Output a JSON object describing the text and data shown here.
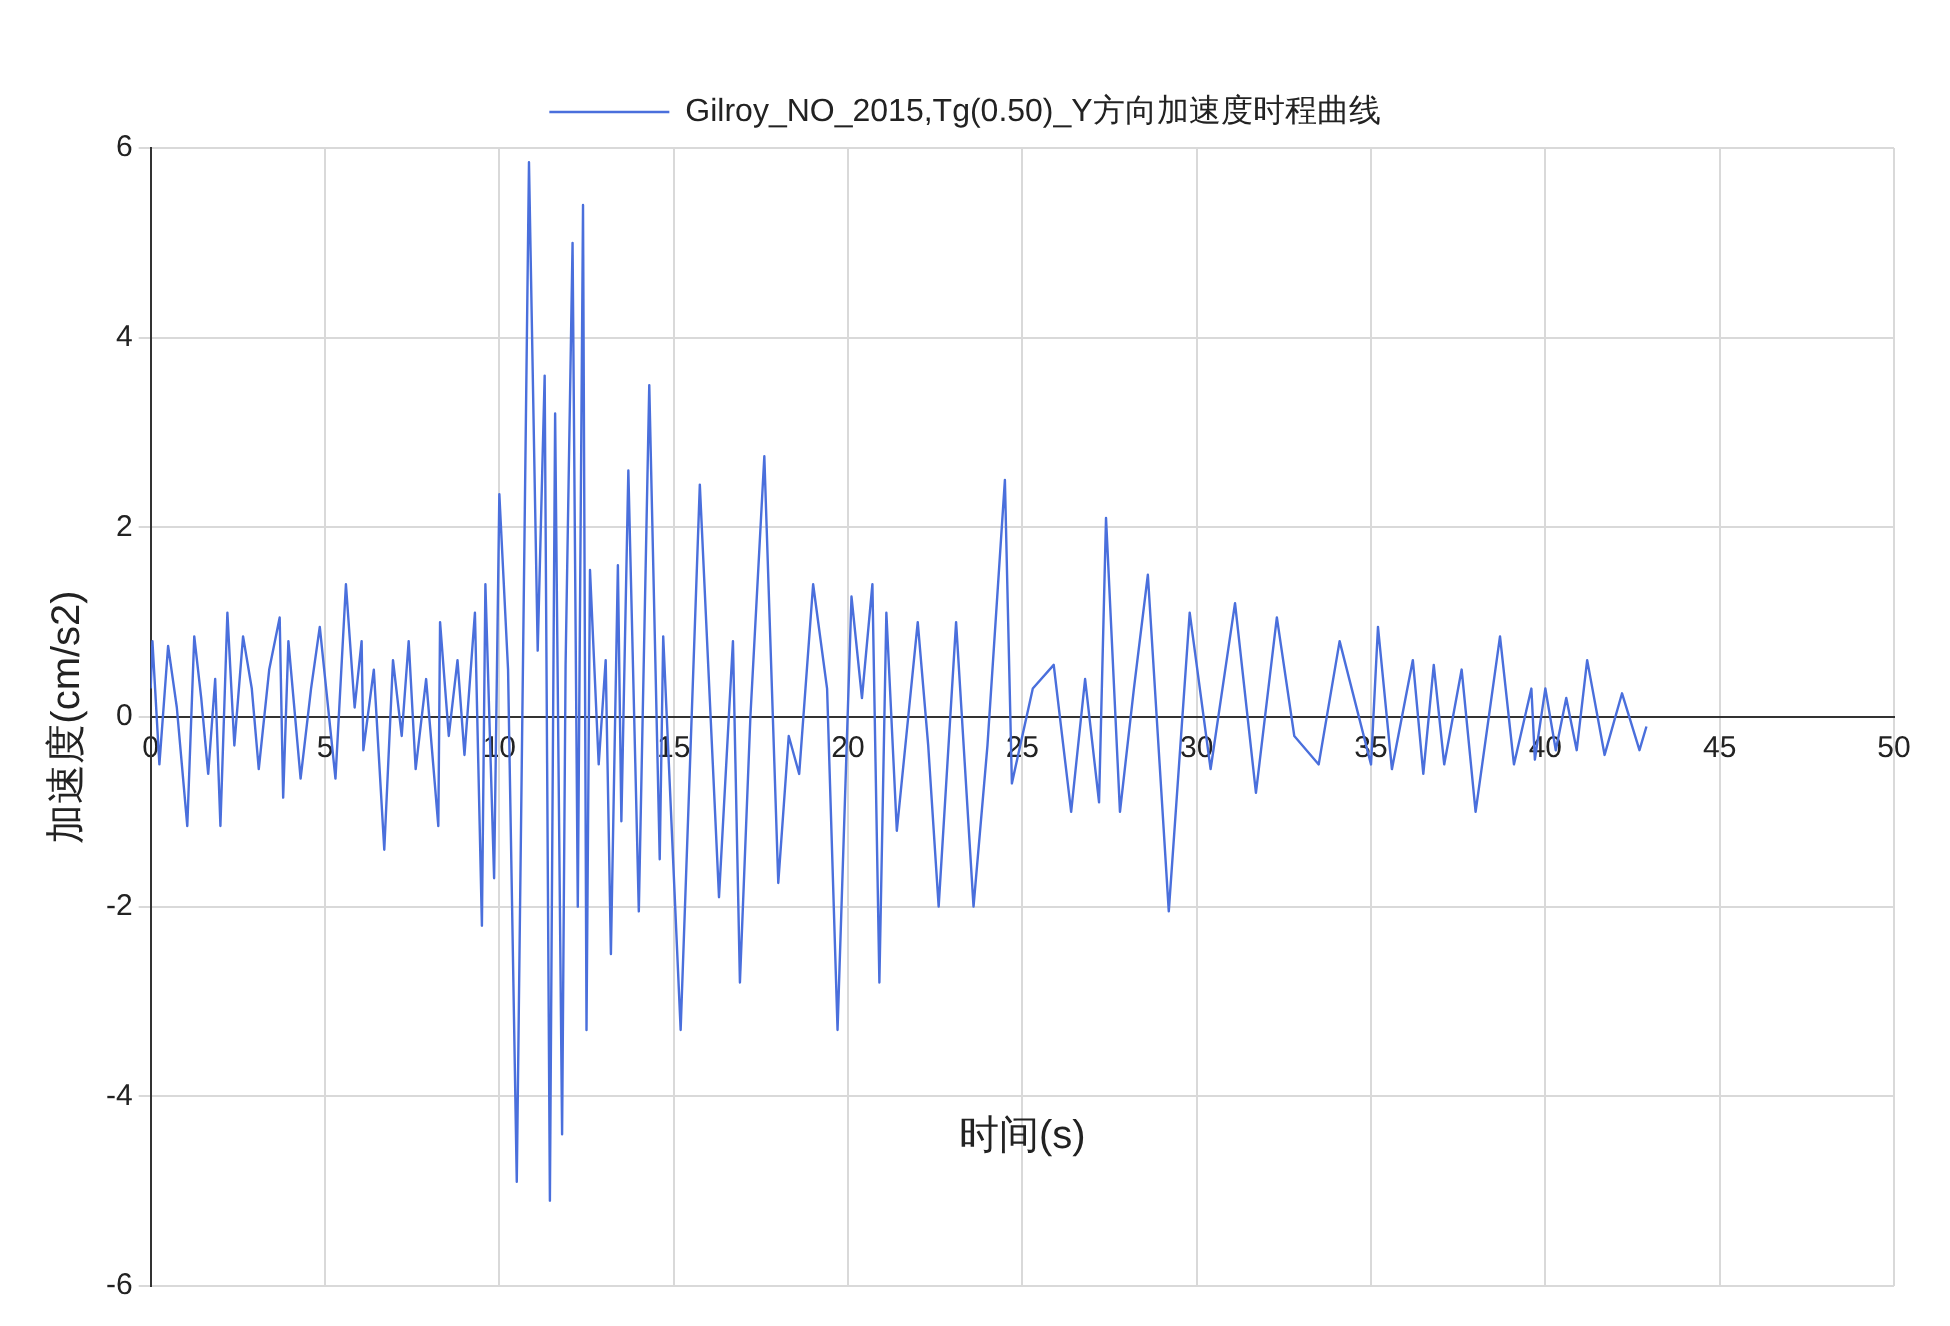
{
  "chart_data": {
    "type": "line",
    "xlabel": "时间(s)",
    "ylabel": "加速度(cm/s2)",
    "xlim": [
      0,
      50
    ],
    "xticks": [
      0,
      5,
      10,
      15,
      20,
      25,
      30,
      35,
      40,
      45,
      50
    ],
    "ylim": [
      -6,
      6
    ],
    "yticks": [
      -6,
      -4,
      -2,
      0,
      2,
      4,
      6
    ],
    "grid": true,
    "legend": "top",
    "marker": "none",
    "line_style": "solid",
    "series": [
      {
        "name": "Gilroy_NO_2015,Tg(0.50)_Y方向加速度时程曲线",
        "color": "#4a6fdc",
        "x": [
          0,
          0.05,
          0.25,
          0.5,
          0.75,
          1.05,
          1.25,
          1.45,
          1.65,
          1.85,
          2.0,
          2.2,
          2.4,
          2.65,
          2.9,
          3.1,
          3.4,
          3.7,
          3.8,
          3.95,
          4.3,
          4.6,
          4.85,
          5.3,
          5.6,
          5.85,
          6.05,
          6.1,
          6.4,
          6.7,
          6.95,
          7.2,
          7.4,
          7.6,
          7.9,
          8.25,
          8.3,
          8.55,
          8.8,
          9.0,
          9.3,
          9.5,
          9.6,
          9.85,
          10.0,
          10.25,
          10.5,
          10.85,
          11.1,
          11.3,
          11.45,
          11.6,
          11.8,
          11.9,
          12.1,
          12.25,
          12.4,
          12.5,
          12.6,
          12.85,
          13.05,
          13.2,
          13.4,
          13.5,
          13.7,
          14.0,
          14.3,
          14.6,
          14.7,
          15.2,
          15.75,
          16.3,
          16.7,
          16.9,
          17.2,
          17.6,
          18.0,
          18.3,
          18.6,
          19.0,
          19.4,
          19.7,
          20.1,
          20.4,
          20.7,
          20.9,
          21.1,
          21.4,
          22.0,
          22.3,
          22.6,
          23.1,
          23.6,
          24.0,
          24.5,
          24.7,
          25.3,
          25.9,
          26.4,
          26.8,
          27.2,
          27.4,
          27.8,
          28.2,
          28.6,
          29.2,
          29.8,
          30.4,
          31.1,
          31.7,
          32.3,
          32.8,
          33.5,
          34.1,
          35.0,
          35.2,
          35.6,
          36.2,
          36.5,
          36.8,
          37.1,
          37.6,
          38.0,
          38.7,
          39.1,
          39.6,
          39.7,
          40.0,
          40.3,
          40.6,
          40.9,
          41.2,
          41.7,
          42.2,
          42.7,
          42.9
        ],
        "values": [
          0.3,
          0.8,
          -0.5,
          0.75,
          0.1,
          -1.15,
          0.85,
          0.2,
          -0.6,
          0.4,
          -1.15,
          1.1,
          -0.3,
          0.85,
          0.3,
          -0.55,
          0.5,
          1.05,
          -0.85,
          0.8,
          -0.65,
          0.3,
          0.95,
          -0.65,
          1.4,
          0.1,
          0.8,
          -0.35,
          0.5,
          -1.4,
          0.6,
          -0.2,
          0.8,
          -0.55,
          0.4,
          -1.15,
          1.0,
          -0.2,
          0.6,
          -0.4,
          1.1,
          -2.2,
          1.4,
          -1.7,
          2.35,
          0.5,
          -4.9,
          5.85,
          0.7,
          3.6,
          -5.1,
          3.2,
          -4.4,
          0.55,
          5.0,
          -2.0,
          5.4,
          -3.3,
          1.55,
          -0.5,
          0.6,
          -2.5,
          1.6,
          -1.1,
          2.6,
          -2.05,
          3.5,
          -1.5,
          0.85,
          -3.3,
          2.45,
          -1.9,
          0.8,
          -2.8,
          0.0,
          2.75,
          -1.75,
          -0.2,
          -0.6,
          1.4,
          0.3,
          -3.3,
          1.27,
          0.2,
          1.4,
          -2.8,
          1.1,
          -1.2,
          1.0,
          -0.3,
          -2.0,
          1.0,
          -2.0,
          -0.3,
          2.5,
          -0.7,
          0.3,
          0.55,
          -1.0,
          0.4,
          -0.9,
          2.1,
          -1.0,
          0.3,
          1.5,
          -2.05,
          1.1,
          -0.55,
          1.2,
          -0.8,
          1.05,
          -0.2,
          -0.5,
          0.8,
          -0.5,
          0.95,
          -0.55,
          0.6,
          -0.6,
          0.55,
          -0.5,
          0.5,
          -1.0,
          0.85,
          -0.5,
          0.3,
          -0.45,
          0.3,
          -0.35,
          0.2,
          -0.35,
          0.6,
          -0.4,
          0.25,
          -0.35,
          -0.1
        ]
      }
    ]
  }
}
